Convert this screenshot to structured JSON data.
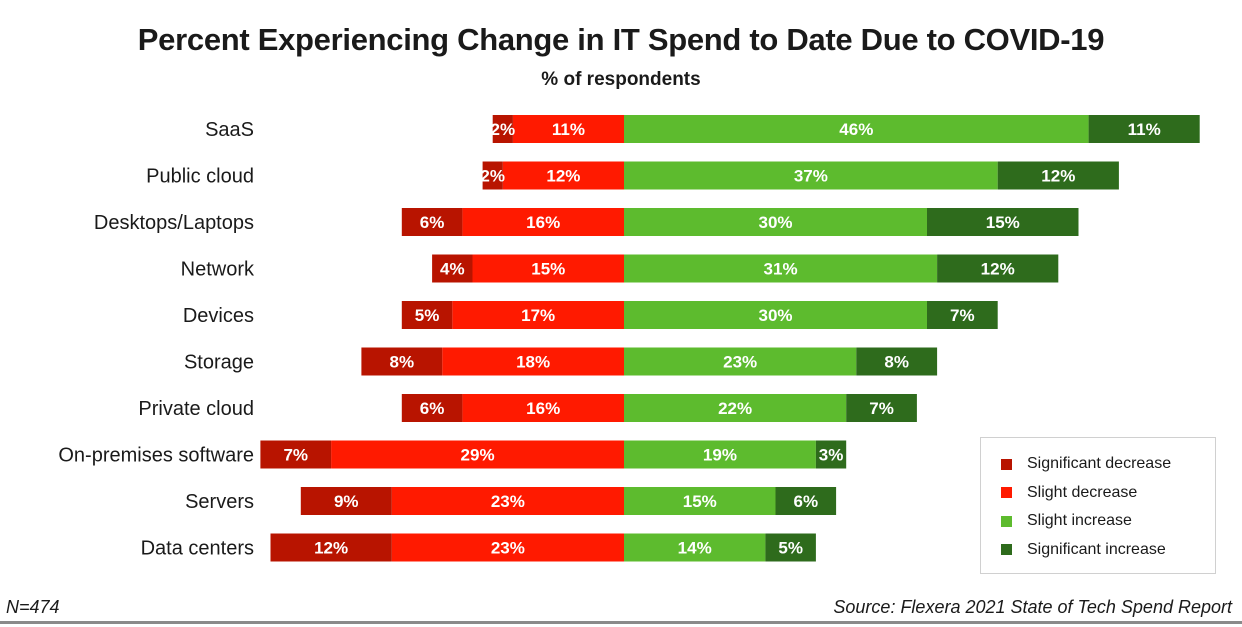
{
  "chart_data": {
    "type": "bar",
    "subtype": "diverging-stacked-horizontal",
    "title": "Percent Experiencing Change in IT Spend to Date Due to COVID-19",
    "subtitle": "% of respondents",
    "categories": [
      "SaaS",
      "Public cloud",
      "Desktops/Laptops",
      "Network",
      "Devices",
      "Storage",
      "Private cloud",
      "On-premises software",
      "Servers",
      "Data centers"
    ],
    "series": [
      {
        "name": "Significant decrease",
        "color": "#b81400",
        "direction": "left",
        "values": [
          2,
          2,
          6,
          4,
          5,
          8,
          6,
          7,
          9,
          12
        ]
      },
      {
        "name": "Slight decrease",
        "color": "#ff1a00",
        "direction": "left",
        "values": [
          11,
          12,
          16,
          15,
          17,
          18,
          16,
          29,
          23,
          23
        ]
      },
      {
        "name": "Slight increase",
        "color": "#5dbb2e",
        "direction": "right",
        "values": [
          46,
          37,
          30,
          31,
          30,
          23,
          22,
          19,
          15,
          14
        ]
      },
      {
        "name": "Significant increase",
        "color": "#2e6b1c",
        "direction": "right",
        "values": [
          11,
          12,
          15,
          12,
          7,
          8,
          7,
          3,
          6,
          5
        ]
      }
    ],
    "value_suffix": "%",
    "legend_position": "bottom-right",
    "grid": false
  },
  "footer": {
    "n": "N=474",
    "source": "Source: Flexera 2021 State of Tech Spend Report"
  }
}
